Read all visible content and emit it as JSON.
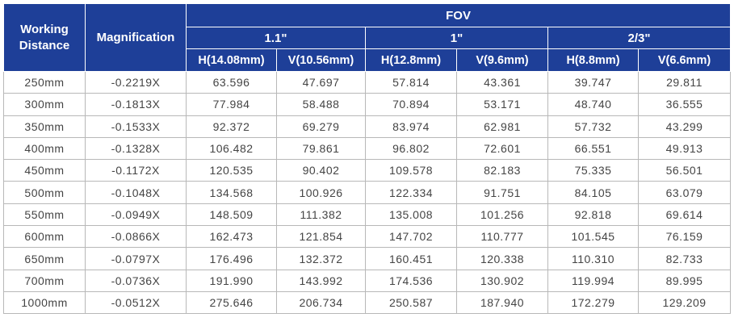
{
  "header": {
    "working_distance": "Working Distance",
    "magnification": "Magnification",
    "fov": "FOV",
    "sensors": [
      {
        "name": "1.1\"",
        "columns": [
          "H(14.08mm)",
          "V(10.56mm)"
        ]
      },
      {
        "name": "1\"",
        "columns": [
          "H(12.8mm)",
          "V(9.6mm)"
        ]
      },
      {
        "name": "2/3\"",
        "columns": [
          "H(8.8mm)",
          "V(6.6mm)"
        ]
      }
    ]
  },
  "table": {
    "rows": [
      [
        "250mm",
        "-0.2219X",
        "63.596",
        "47.697",
        "57.814",
        "43.361",
        "39.747",
        "29.811"
      ],
      [
        "300mm",
        "-0.1813X",
        "77.984",
        "58.488",
        "70.894",
        "53.171",
        "48.740",
        "36.555"
      ],
      [
        "350mm",
        "-0.1533X",
        "92.372",
        "69.279",
        "83.974",
        "62.981",
        "57.732",
        "43.299"
      ],
      [
        "400mm",
        "-0.1328X",
        "106.482",
        "79.861",
        "96.802",
        "72.601",
        "66.551",
        "49.913"
      ],
      [
        "450mm",
        "-0.1172X",
        "120.535",
        "90.402",
        "109.578",
        "82.183",
        "75.335",
        "56.501"
      ],
      [
        "500mm",
        "-0.1048X",
        "134.568",
        "100.926",
        "122.334",
        "91.751",
        "84.105",
        "63.079"
      ],
      [
        "550mm",
        "-0.0949X",
        "148.509",
        "111.382",
        "135.008",
        "101.256",
        "92.818",
        "69.614"
      ],
      [
        "600mm",
        "-0.0866X",
        "162.473",
        "121.854",
        "147.702",
        "110.777",
        "101.545",
        "76.159"
      ],
      [
        "650mm",
        "-0.0797X",
        "176.496",
        "132.372",
        "160.451",
        "120.338",
        "110.310",
        "82.733"
      ],
      [
        "700mm",
        "-0.0736X",
        "191.990",
        "143.992",
        "174.536",
        "130.902",
        "119.994",
        "89.995"
      ],
      [
        "1000mm",
        "-0.0512X",
        "275.646",
        "206.734",
        "250.587",
        "187.940",
        "172.279",
        "129.209"
      ]
    ]
  }
}
